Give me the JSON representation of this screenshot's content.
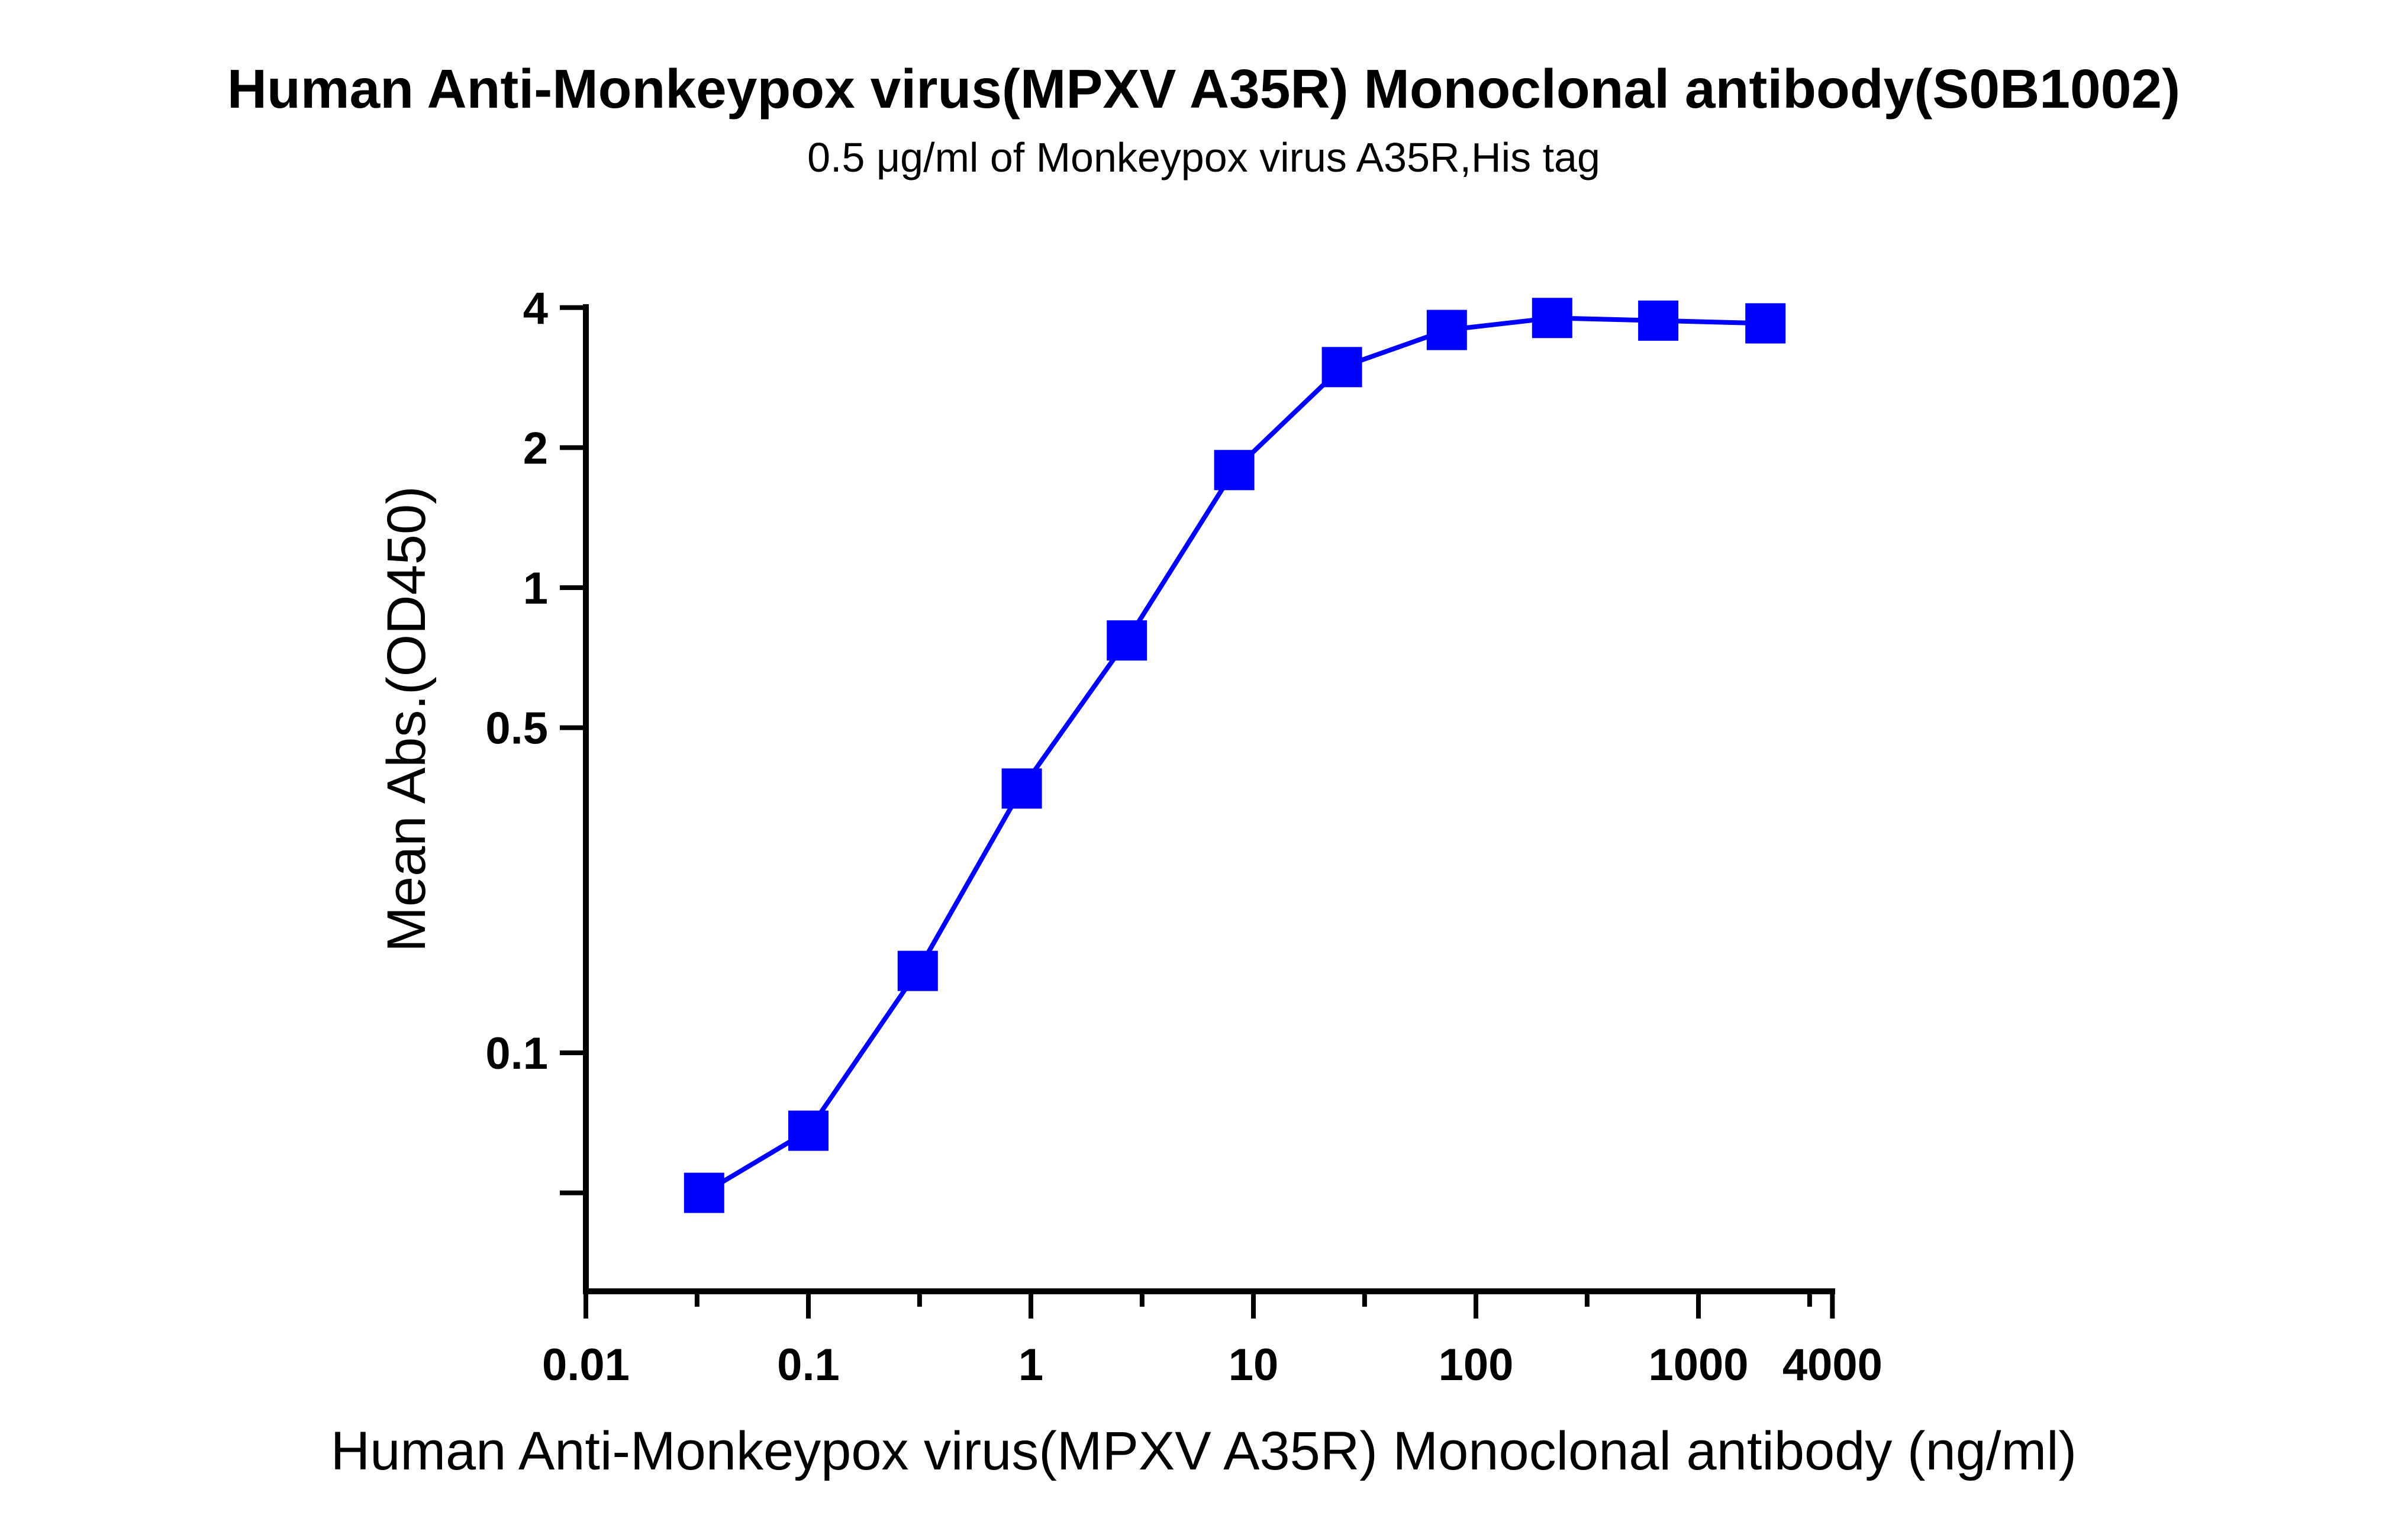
{
  "chart_data": {
    "type": "line",
    "title": "Human Anti-Monkeypox virus(MPXV A35R) Monoclonal antibody(S0B1002)",
    "subtitle": "0.5 μg/ml of Monkeypox virus A35R,His tag",
    "xlabel": "Human Anti-Monkeypox virus(MPXV A35R) Monoclonal antibody (ng/ml)",
    "ylabel": "Mean Abs.(OD450)",
    "x_scale": "log",
    "y_scale": "log",
    "xlim": [
      0.01,
      4000
    ],
    "ylim": [
      0.03,
      4
    ],
    "x_ticks": [
      {
        "value": 0.01,
        "label": "0.01"
      },
      {
        "value": 0.1,
        "label": "0.1"
      },
      {
        "value": 1,
        "label": "1"
      },
      {
        "value": 10,
        "label": "10"
      },
      {
        "value": 100,
        "label": "100"
      },
      {
        "value": 1000,
        "label": "1000"
      },
      {
        "value": 4000,
        "label": "4000"
      }
    ],
    "x_minor_ticks": [
      0.0316,
      0.316,
      3.16,
      31.6,
      316,
      3160
    ],
    "y_ticks": [
      {
        "value": 0.05,
        "label": ""
      },
      {
        "value": 0.1,
        "label": "0.1"
      },
      {
        "value": 0.5,
        "label": "0.5"
      },
      {
        "value": 1,
        "label": "1"
      },
      {
        "value": 2,
        "label": "2"
      },
      {
        "value": 4,
        "label": "4"
      }
    ],
    "grid": false,
    "legend": "none",
    "series": [
      {
        "color": "#0000ff",
        "marker": "square",
        "x": [
          0.034,
          0.1,
          0.31,
          0.91,
          2.7,
          8.2,
          25,
          74,
          220,
          660,
          2000
        ],
        "y": [
          0.05,
          0.068,
          0.15,
          0.37,
          0.77,
          1.79,
          2.98,
          3.58,
          3.8,
          3.75,
          3.7
        ]
      }
    ]
  }
}
